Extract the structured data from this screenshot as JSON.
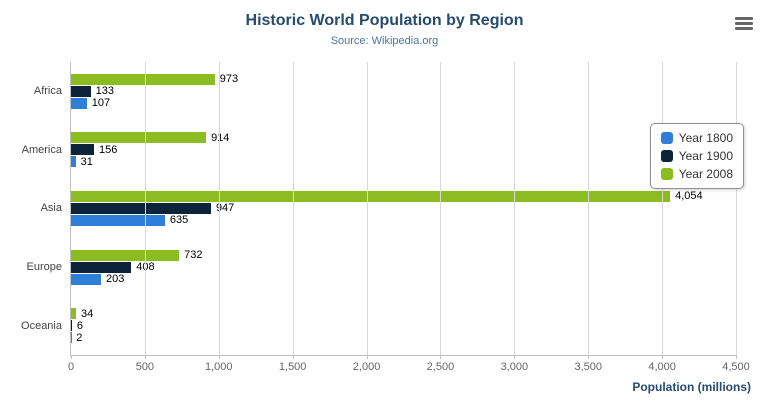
{
  "chart_data": {
    "type": "bar",
    "title": "Historic World Population by Region",
    "subtitle": "Source: Wikipedia.org",
    "categories": [
      "Africa",
      "America",
      "Asia",
      "Europe",
      "Oceania"
    ],
    "series": [
      {
        "name": "Year 1800",
        "color": "#2f7ed8",
        "values": [
          107,
          31,
          635,
          203,
          2
        ]
      },
      {
        "name": "Year 1900",
        "color": "#0d233a",
        "values": [
          133,
          156,
          947,
          408,
          6
        ]
      },
      {
        "name": "Year 2008",
        "color": "#8bbc21",
        "values": [
          973,
          914,
          4054,
          732,
          34
        ]
      }
    ],
    "display_order": [
      "Year 2008",
      "Year 1900",
      "Year 1800"
    ],
    "xlabel": "Population (millions)",
    "xlim": [
      0,
      4500
    ],
    "xticks": [
      0,
      500,
      1000,
      1500,
      2000,
      2500,
      3000,
      3500,
      4000,
      4500
    ],
    "tick_labels": [
      "0",
      "500",
      "1,000",
      "1,500",
      "2,000",
      "2,500",
      "3,000",
      "3,500",
      "4,000",
      "4,500"
    ],
    "legend_position": "right",
    "grid": true
  },
  "icons": {
    "menu": "hamburger-menu-icon"
  }
}
